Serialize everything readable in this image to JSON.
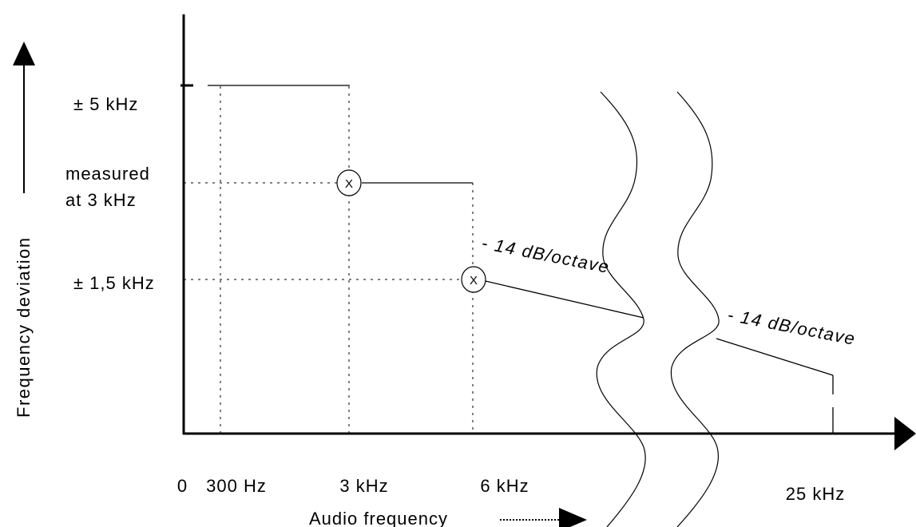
{
  "y_axis": {
    "label": "Frequency deviation",
    "ticks": {
      "dev_5k": "± 5 kHz",
      "measured_line1": "measured",
      "measured_line2": "at 3 kHz",
      "dev_1_5k": "± 1,5 kHz"
    }
  },
  "x_axis": {
    "label": "Audio frequency",
    "ticks": {
      "zero": "0",
      "hz300": "300 Hz",
      "khz3": "3 kHz",
      "khz6": "6 kHz",
      "khz25": "25 kHz"
    }
  },
  "annotations": {
    "slope_1": "- 14 dB/octave",
    "slope_2": "- 14 dB/octave"
  },
  "markers": {
    "symbol": "X"
  }
}
